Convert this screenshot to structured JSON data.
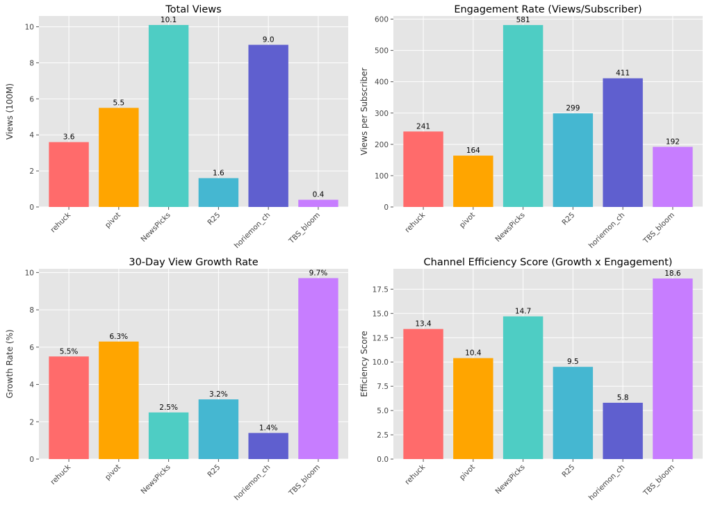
{
  "chart_data": [
    {
      "type": "bar",
      "title": "Total Views",
      "ylabel": "Views (100M)",
      "xlabel": "",
      "categories": [
        "rehuck",
        "pivot",
        "NewsPicks",
        "R25",
        "horiemon_ch",
        "TBS_bloom"
      ],
      "values": [
        3.6,
        5.5,
        10.1,
        1.6,
        9.0,
        0.4
      ],
      "value_labels": [
        "3.6",
        "5.5",
        "10.1",
        "1.6",
        "9.0",
        "0.4"
      ],
      "ylim": [
        0,
        10.6
      ],
      "yticks": [
        0,
        2,
        4,
        6,
        8,
        10
      ],
      "ytick_labels": [
        "0",
        "2",
        "4",
        "6",
        "8",
        "10"
      ],
      "grid": true
    },
    {
      "type": "bar",
      "title": "Engagement Rate (Views/Subscriber)",
      "ylabel": "Views per Subscriber",
      "xlabel": "",
      "categories": [
        "rehuck",
        "pivot",
        "NewsPicks",
        "R25",
        "horiemon_ch",
        "TBS_bloom"
      ],
      "values": [
        241,
        164,
        581,
        299,
        411,
        192
      ],
      "value_labels": [
        "241",
        "164",
        "581",
        "299",
        "411",
        "192"
      ],
      "ylim": [
        0,
        610
      ],
      "yticks": [
        0,
        100,
        200,
        300,
        400,
        500,
        600
      ],
      "ytick_labels": [
        "0",
        "100",
        "200",
        "300",
        "400",
        "500",
        "600"
      ],
      "grid": true
    },
    {
      "type": "bar",
      "title": "30-Day View Growth Rate",
      "ylabel": "Growth Rate (%)",
      "xlabel": "",
      "categories": [
        "rehuck",
        "pivot",
        "NewsPicks",
        "R25",
        "horiemon_ch",
        "TBS_bloom"
      ],
      "values": [
        5.5,
        6.3,
        2.5,
        3.2,
        1.4,
        9.7
      ],
      "value_labels": [
        "5.5%",
        "6.3%",
        "2.5%",
        "3.2%",
        "1.4%",
        "9.7%"
      ],
      "ylim": [
        0,
        10.2
      ],
      "yticks": [
        0,
        2,
        4,
        6,
        8,
        10
      ],
      "ytick_labels": [
        "0",
        "2",
        "4",
        "6",
        "8",
        "10"
      ],
      "grid": true
    },
    {
      "type": "bar",
      "title": "Channel Efficiency Score (Growth x Engagement)",
      "ylabel": "Efficiency Score",
      "xlabel": "",
      "categories": [
        "rehuck",
        "pivot",
        "NewsPicks",
        "R25",
        "horiemon_ch",
        "TBS_bloom"
      ],
      "values": [
        13.4,
        10.4,
        14.7,
        9.5,
        5.8,
        18.6
      ],
      "value_labels": [
        "13.4",
        "10.4",
        "14.7",
        "9.5",
        "5.8",
        "18.6"
      ],
      "ylim": [
        0,
        19.6
      ],
      "yticks": [
        0,
        2.5,
        5,
        7.5,
        10,
        12.5,
        15,
        17.5
      ],
      "ytick_labels": [
        "0.0",
        "2.5",
        "5.0",
        "7.5",
        "10.0",
        "12.5",
        "15.0",
        "17.5"
      ],
      "grid": true
    }
  ],
  "colors": [
    "#ff6b6b",
    "#ffa500",
    "#4ecdc4",
    "#45b7d1",
    "#5f5fcf",
    "#c77dff"
  ]
}
